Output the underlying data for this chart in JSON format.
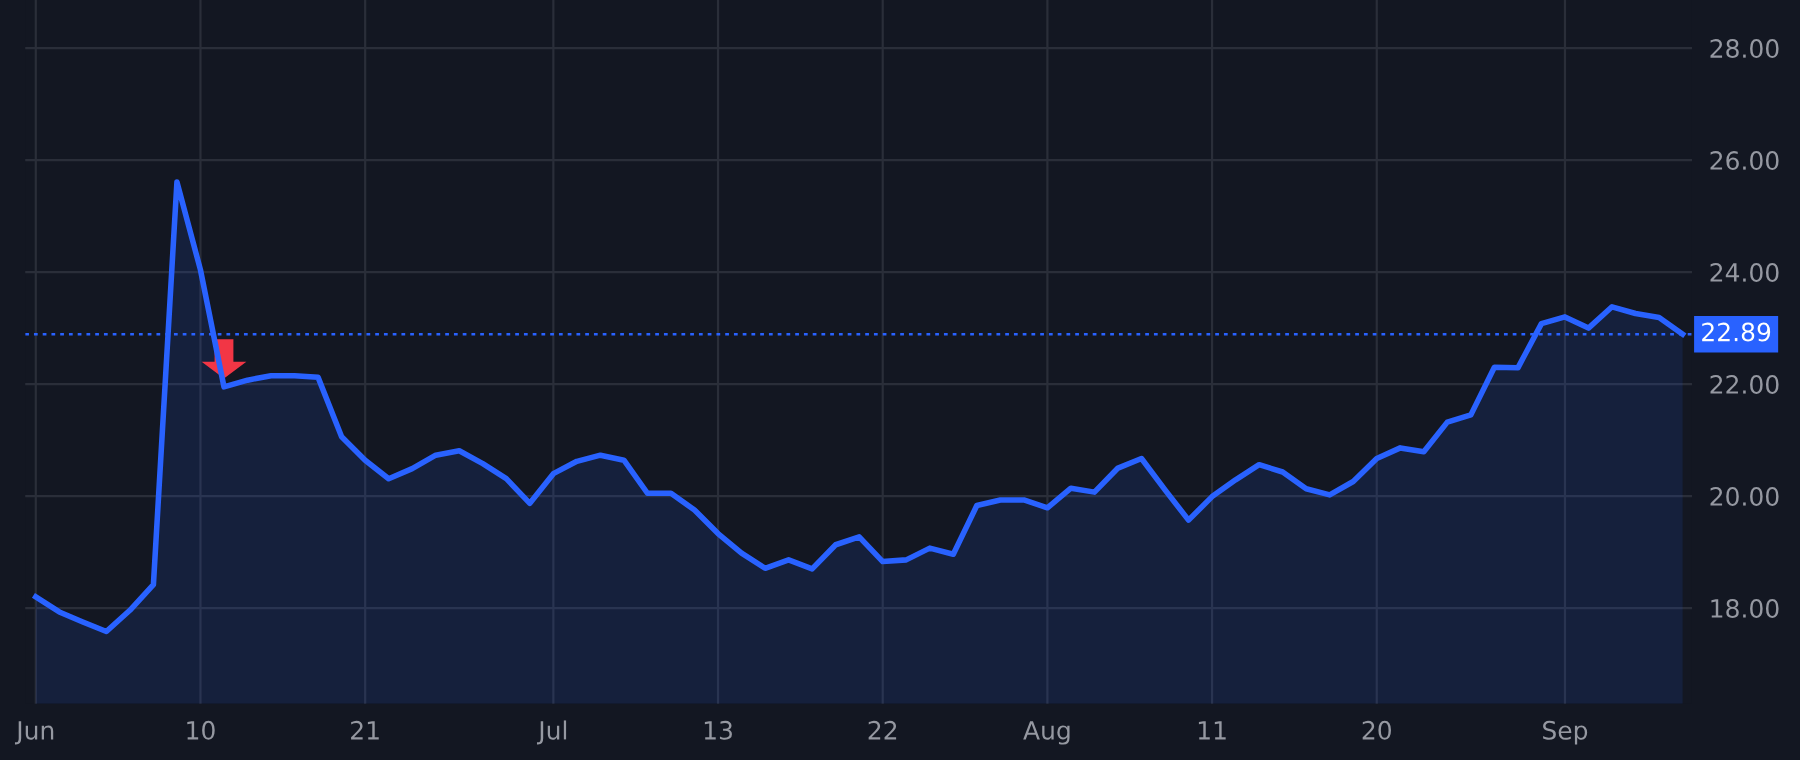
{
  "chart_data": {
    "type": "area",
    "categories": [
      "Jun",
      null,
      null,
      null,
      null,
      null,
      null,
      "10",
      null,
      null,
      null,
      null,
      null,
      null,
      "21",
      null,
      null,
      null,
      null,
      null,
      null,
      null,
      "Jul",
      null,
      null,
      null,
      null,
      null,
      null,
      "13",
      null,
      null,
      null,
      null,
      null,
      null,
      "22",
      null,
      null,
      null,
      null,
      null,
      null,
      "Aug",
      null,
      null,
      null,
      null,
      null,
      null,
      "11",
      null,
      null,
      null,
      null,
      null,
      null,
      "20",
      null,
      null,
      null,
      null,
      null,
      null,
      null,
      "Sep",
      null,
      null,
      null,
      null,
      null
    ],
    "series": [
      {
        "color": "#2962ff",
        "values": [
          18.2,
          17.93,
          17.75,
          17.58,
          17.96,
          18.42,
          25.61,
          24.04,
          21.95,
          22.07,
          22.15,
          22.15,
          22.12,
          21.06,
          20.64,
          20.31,
          20.49,
          20.73,
          20.81,
          20.58,
          20.31,
          19.87,
          20.4,
          20.62,
          20.73,
          20.64,
          20.05,
          20.05,
          19.75,
          19.33,
          18.98,
          18.71,
          18.86,
          18.7,
          19.13,
          19.27,
          18.83,
          18.86,
          19.07,
          18.96,
          19.83,
          19.93,
          19.93,
          19.79,
          20.14,
          20.07,
          20.5,
          20.67,
          20.11,
          19.57,
          19.99,
          20.29,
          20.56,
          20.43,
          20.13,
          20.02,
          20.26,
          20.67,
          20.86,
          20.79,
          21.32,
          21.45,
          22.3,
          22.29,
          23.08,
          23.2,
          23.0,
          23.38,
          23.26,
          23.19,
          22.89
        ]
      }
    ],
    "ylim": [
      16.29,
      28.86
    ],
    "yticks": [
      {
        "value": 18,
        "label": "18.00"
      },
      {
        "value": 20,
        "label": "20.00"
      },
      {
        "value": 22,
        "label": "22.00"
      },
      {
        "value": 24,
        "label": "24.00"
      },
      {
        "value": 26,
        "label": "26.00"
      },
      {
        "value": 28,
        "label": "28.00"
      }
    ],
    "ref_lines": [
      {
        "axis": "y",
        "value": 22.89,
        "label": "22.89",
        "color": "#2962ff",
        "line_style": "dotted"
      }
    ],
    "grid": true,
    "legend": false
  }
}
